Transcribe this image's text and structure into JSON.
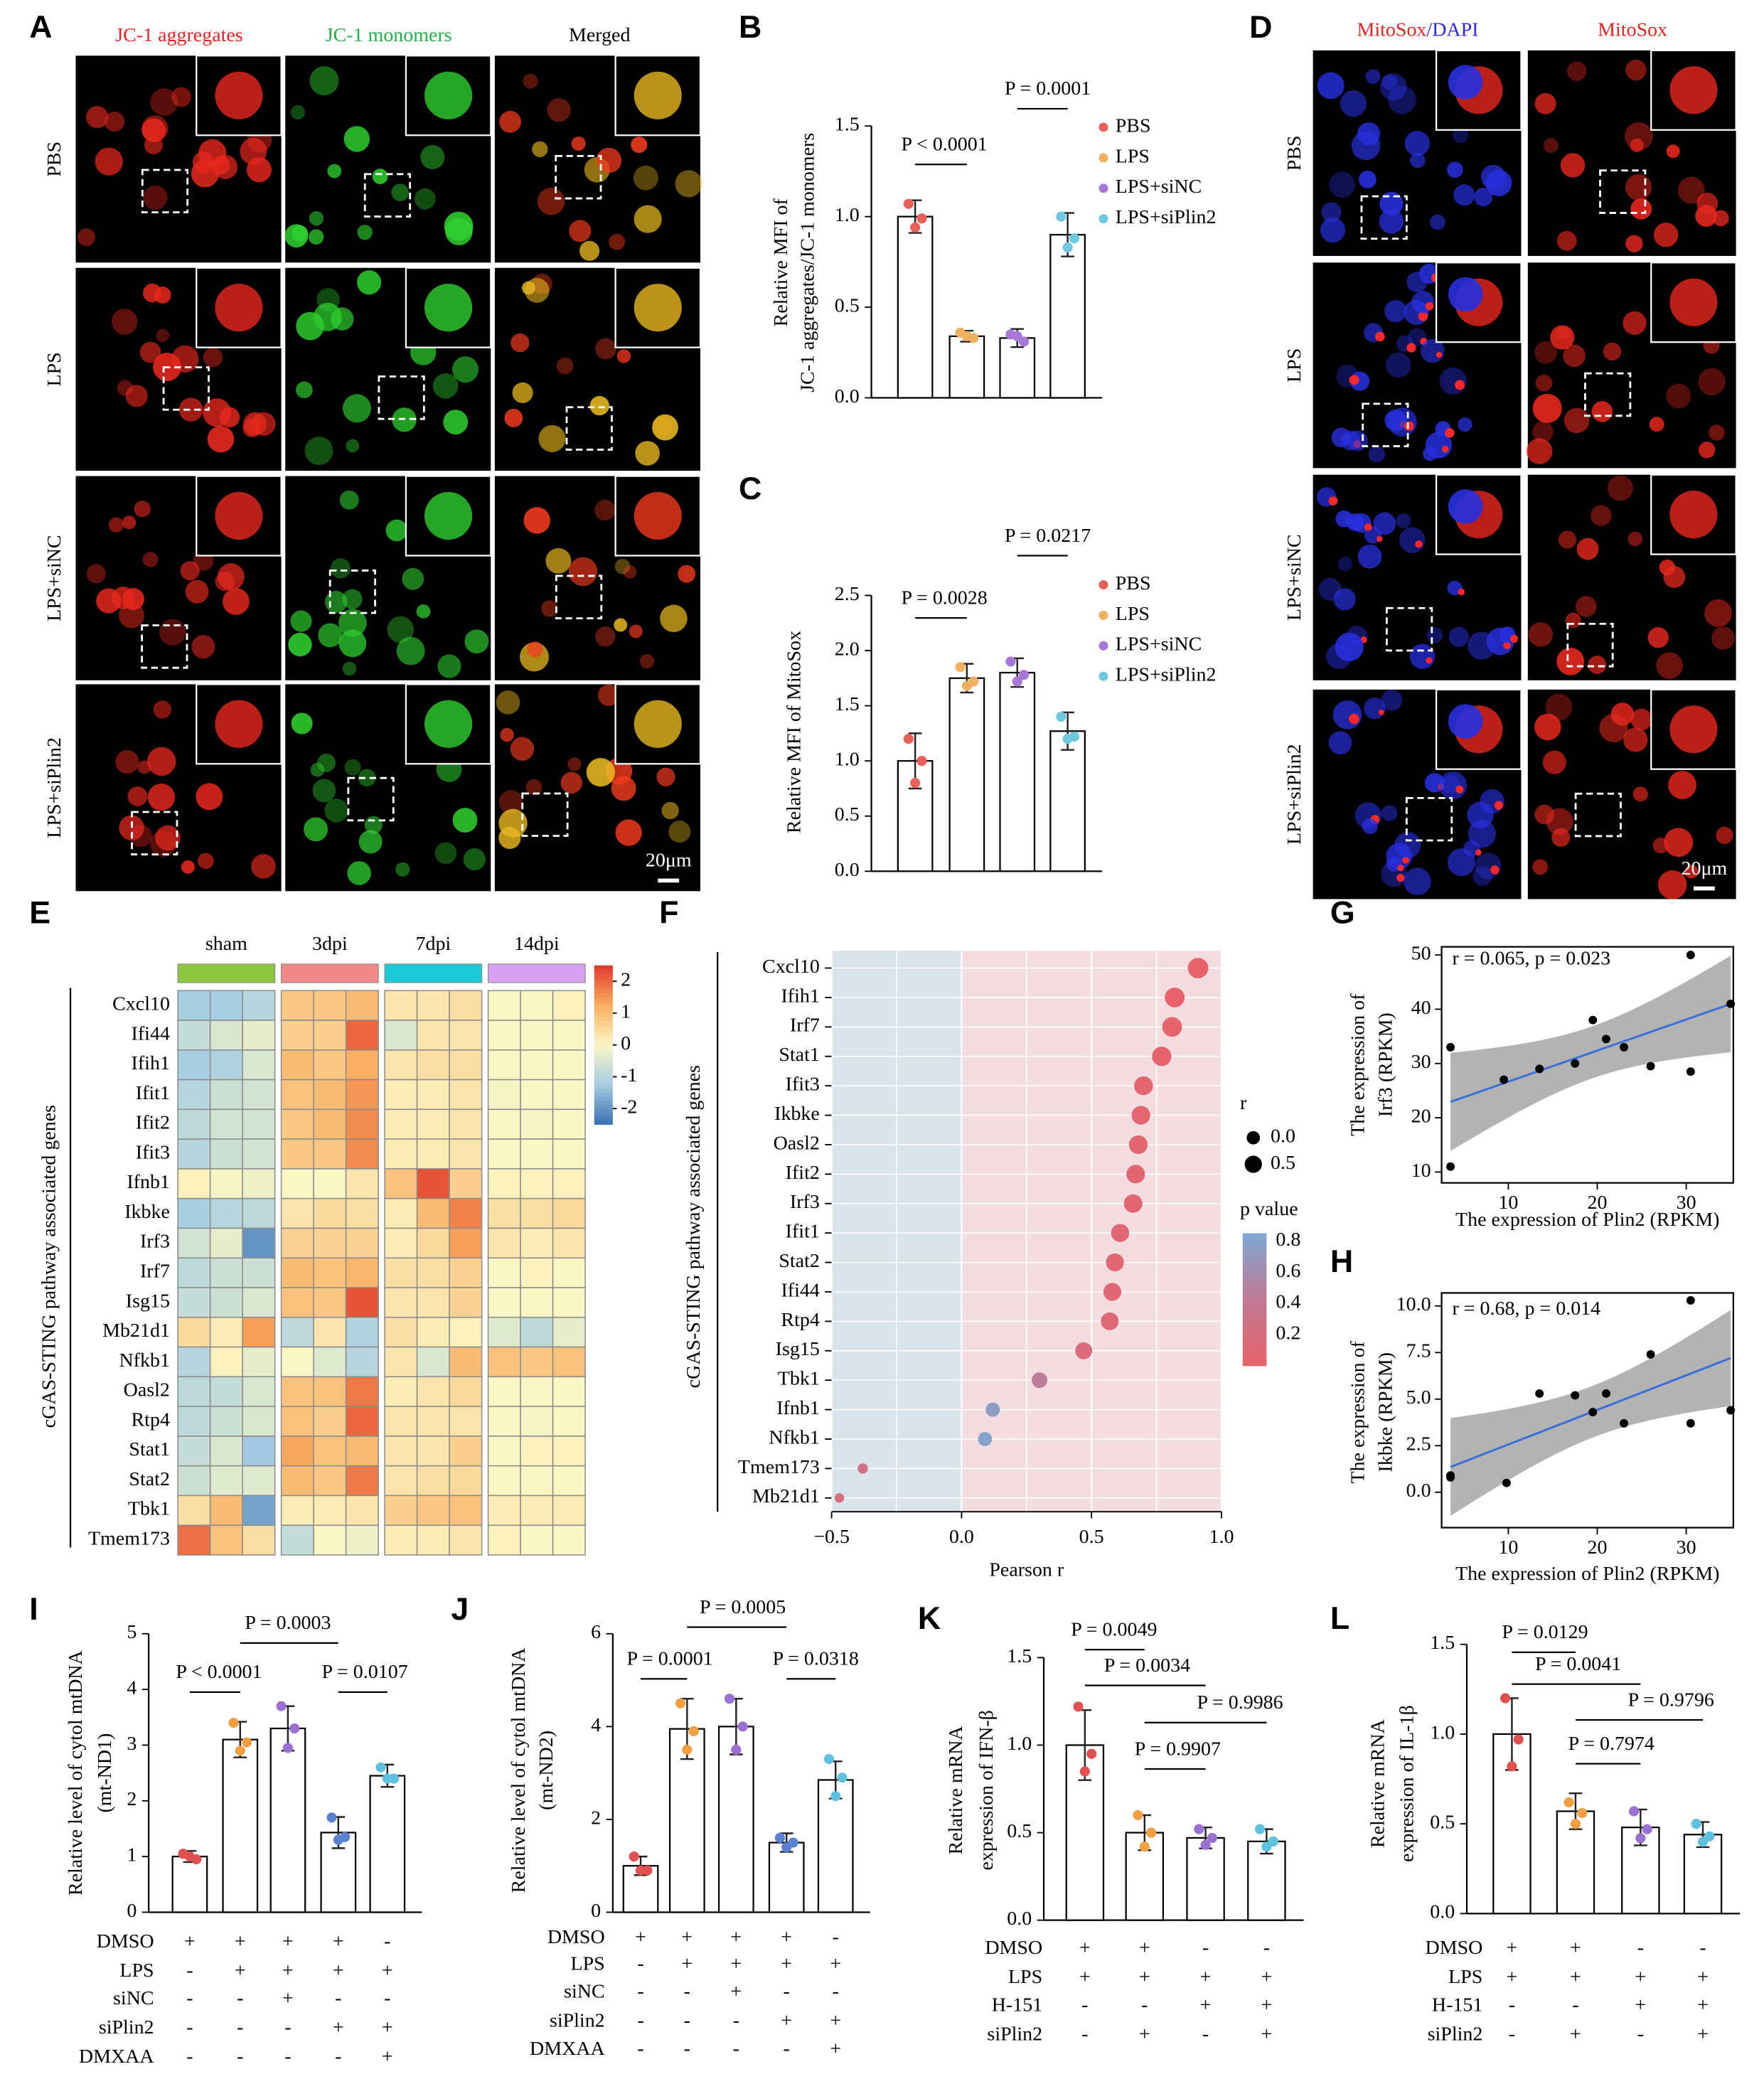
{
  "images": [
    {
      "label": "A",
      "columns": [
        [
          {
            "text": "JC-1 aggregates",
            "color": "#e62222"
          }
        ],
        [
          {
            "text": "JC-1 monomers",
            "color": "#22b04a"
          }
        ],
        [
          {
            "text": "Merged",
            "color": "#000000"
          }
        ]
      ],
      "rows": [
        "PBS",
        "LPS",
        "LPS+siNC",
        "LPS+siPlin2"
      ],
      "scale_bar": "20μm"
    },
    {
      "label": "D",
      "columns": [
        [
          {
            "text": "MitoSox",
            "color": "#e62222"
          },
          {
            "text": "/DAPI",
            "color": "#2a2ae6"
          }
        ],
        [
          {
            "text": "MitoSox",
            "color": "#e62222"
          }
        ]
      ],
      "rows": [
        "PBS",
        "LPS",
        "LPS+siNC",
        "LPS+siPlin2"
      ],
      "scale_bar": "20μm"
    }
  ],
  "chart_data": [
    {
      "type": "bar",
      "label": "B",
      "ylabel": [
        "Relative MFI of",
        "JC-1 aggregates/JC-1 monomers"
      ],
      "categories": [
        "PBS",
        "LPS",
        "LPS+siNC",
        "LPS+siPlin2"
      ],
      "colors": [
        "#e8605a",
        "#f0b060",
        "#a878d8",
        "#70c8e0"
      ],
      "values": [
        1.0,
        0.34,
        0.33,
        0.9
      ],
      "errors": [
        0.09,
        0.03,
        0.05,
        0.12
      ],
      "points": [
        [
          1.07,
          0.99,
          0.94
        ],
        [
          0.36,
          0.33,
          0.34
        ],
        [
          0.35,
          0.31,
          0.34
        ],
        [
          1.0,
          0.88,
          0.83
        ]
      ],
      "ylim": [
        0,
        1.5
      ],
      "yticks": [
        {
          "value": 0,
          "label": "0.0"
        },
        0.5,
        {
          "value": 1,
          "label": "1.0"
        },
        1.5
      ],
      "annotations": [
        "P < 0.0001",
        "P = 0.0001"
      ]
    },
    {
      "type": "bar",
      "label": "C",
      "ylabel": [
        "Relative MFI of MitoSox"
      ],
      "categories": [
        "PBS",
        "LPS",
        "LPS+siNC",
        "LPS+siPlin2"
      ],
      "colors": [
        "#e8605a",
        "#f0b060",
        "#a878d8",
        "#70c8e0"
      ],
      "values": [
        1.0,
        1.75,
        1.8,
        1.27
      ],
      "errors": [
        0.25,
        0.13,
        0.13,
        0.17
      ],
      "points": [
        [
          1.2,
          1.0,
          0.8
        ],
        [
          1.85,
          1.72,
          1.68
        ],
        [
          1.9,
          1.78,
          1.72
        ],
        [
          1.4,
          1.22,
          1.2
        ]
      ],
      "ylim": [
        0,
        2.5
      ],
      "yticks": [
        {
          "value": 0,
          "label": "0.0"
        },
        0.5,
        {
          "value": 1,
          "label": "1.0"
        },
        1.5,
        {
          "value": 2,
          "label": "2.0"
        },
        2.5
      ],
      "annotations": [
        "P = 0.0028",
        "P = 0.0217"
      ]
    },
    {
      "type": "heatmap",
      "label": "E",
      "ylabel": "cGAS-STING pathway associated genes",
      "groups": [
        {
          "name": "sham",
          "color": "#8cc63e"
        },
        {
          "name": "3dpi",
          "color": "#f08a8a"
        },
        {
          "name": "7dpi",
          "color": "#1ccad6"
        },
        {
          "name": "14dpi",
          "color": "#d8a0f0"
        }
      ],
      "rows": [
        "Cxcl10",
        "Ifi44",
        "Ifih1",
        "Ifit1",
        "Ifit2",
        "Ifit3",
        "Ifnb1",
        "Ikbke",
        "Irf3",
        "Irf7",
        "Isg15",
        "Mb21d1",
        "Nfkb1",
        "Oasl2",
        "Rtp4",
        "Stat1",
        "Stat2",
        "Tbk1",
        "Tmem173"
      ],
      "values": [
        [
          -1.2,
          -1.2,
          -1.0,
          0.8,
          0.8,
          1.0,
          0.3,
          0.3,
          0.4,
          0,
          0,
          0.1
        ],
        [
          -0.8,
          -0.5,
          -0.3,
          0.7,
          0.7,
          2.0,
          -0.5,
          0.3,
          0.3,
          0,
          0,
          0
        ],
        [
          -1.2,
          -1.1,
          -0.5,
          1.0,
          0.8,
          1.2,
          0.3,
          0.4,
          0.4,
          0,
          0,
          0
        ],
        [
          -1.0,
          -0.7,
          -0.6,
          0.9,
          1.0,
          1.5,
          0.2,
          0.2,
          0.3,
          -0.1,
          0,
          0
        ],
        [
          -0.9,
          -0.6,
          -0.6,
          0.8,
          1.0,
          1.6,
          0.2,
          0.2,
          0.3,
          0,
          -0.1,
          0
        ],
        [
          -1.0,
          -0.7,
          -0.6,
          0.8,
          0.8,
          1.6,
          0.2,
          0.2,
          0.3,
          0,
          0,
          0
        ],
        [
          0.1,
          -0.1,
          -0.2,
          0,
          0,
          0.3,
          0.9,
          2.2,
          0.7,
          0.1,
          0.1,
          0.1
        ],
        [
          -1.2,
          -1.0,
          -0.9,
          0.3,
          0.5,
          0.4,
          0.2,
          1.0,
          1.7,
          0.4,
          0.4,
          0.5
        ],
        [
          -0.6,
          -0.3,
          -2.0,
          0.6,
          0.6,
          0.6,
          0.2,
          0.5,
          1.4,
          0.3,
          0.2,
          0.3
        ],
        [
          -0.9,
          -0.7,
          -0.7,
          1.0,
          0.9,
          1.1,
          0.4,
          0.4,
          0.6,
          0,
          0.1,
          0
        ],
        [
          -0.8,
          -0.7,
          -0.5,
          0.9,
          0.8,
          2.2,
          0.3,
          0.3,
          0.6,
          0,
          0,
          0
        ],
        [
          0.5,
          0.2,
          1.4,
          -0.9,
          0.3,
          -1.1,
          0.4,
          0.2,
          0.1,
          -0.4,
          -0.9,
          -0.3
        ],
        [
          -1.0,
          0.1,
          -0.3,
          0,
          -0.4,
          -1.0,
          0.3,
          -0.5,
          1.0,
          0.9,
          0.8,
          0.9
        ],
        [
          -0.9,
          -0.8,
          -0.5,
          0.9,
          0.9,
          1.8,
          0.2,
          0.3,
          0.5,
          0,
          0,
          0
        ],
        [
          -0.9,
          -0.7,
          -0.5,
          0.9,
          0.7,
          2.0,
          0.3,
          0.3,
          0.3,
          0,
          -0.1,
          0
        ],
        [
          -0.8,
          -0.5,
          -1.3,
          1.3,
          0.9,
          1.0,
          0.3,
          0.3,
          0.7,
          0,
          0.1,
          0.1
        ],
        [
          -0.7,
          -0.4,
          -0.4,
          1.0,
          0.8,
          1.8,
          0.3,
          0.4,
          0.5,
          0,
          0,
          0
        ],
        [
          0.4,
          1.0,
          -1.8,
          0.2,
          0.2,
          0.3,
          0.7,
          0.8,
          0.9,
          0.2,
          0.2,
          0.2
        ],
        [
          1.9,
          0.9,
          0.4,
          -0.8,
          0,
          -0.2,
          0.2,
          0.2,
          0.3,
          0.1,
          0,
          0
        ]
      ],
      "zlim": [
        -2.5,
        2.5
      ],
      "zticks": [
        2,
        1,
        0,
        -1,
        -2
      ]
    },
    {
      "type": "dot",
      "label": "F",
      "ylabel": "cGAS-STING pathway associated genes",
      "xlabel": "Pearson r",
      "categories": [
        "Cxcl10",
        "Ifih1",
        "Irf7",
        "Stat1",
        "Ifit3",
        "Ikbke",
        "Oasl2",
        "Ifit2",
        "Irf3",
        "Ifit1",
        "Stat2",
        "Ifi44",
        "Rtp4",
        "Isg15",
        "Tbk1",
        "Ifnb1",
        "Nfkb1",
        "Tmem173",
        "Mb21d1"
      ],
      "values": [
        0.91,
        0.82,
        0.81,
        0.77,
        0.7,
        0.69,
        0.68,
        0.67,
        0.66,
        0.61,
        0.59,
        0.58,
        0.57,
        0.47,
        0.3,
        0.12,
        0.09,
        -0.38,
        -0.47
      ],
      "p_values": [
        0.001,
        0.01,
        0.01,
        0.02,
        0.05,
        0.05,
        0.05,
        0.06,
        0.06,
        0.08,
        0.09,
        0.09,
        0.1,
        0.15,
        0.45,
        0.75,
        0.8,
        0.25,
        0.18
      ],
      "xlim": [
        -0.5,
        1.0
      ],
      "xticks": [
        {
          "value": -0.5,
          "label": "−0.5"
        },
        {
          "value": 0,
          "label": "0.0"
        },
        0.5,
        {
          "value": 1,
          "label": "1.0"
        }
      ],
      "size_title": "r",
      "size_legend": [
        {
          "value": 0,
          "label": "0.0"
        },
        0.5
      ],
      "color_title": "p value",
      "plim": [
        0,
        0.85
      ],
      "pticks": [
        0.8,
        0.6,
        0.4,
        0.2
      ]
    },
    {
      "type": "scatter",
      "label": "G",
      "annotation": "r = 0.065, p = 0.023",
      "xlabel": "The expression of Plin2 (RPKM)",
      "ylabel": [
        "The expression of",
        "Irf3 (RPKM)"
      ],
      "x": [
        3.5,
        3.5,
        9.5,
        13.5,
        17.5,
        19.5,
        21,
        23,
        26,
        30.5,
        30.5,
        35
      ],
      "y": [
        33,
        11,
        27,
        29,
        30,
        38,
        34.5,
        33,
        29.5,
        50,
        28.5,
        41
      ],
      "xlim": [
        2.5,
        35.3
      ],
      "xticks": [
        10,
        20,
        30
      ],
      "ylim": [
        8,
        51.5
      ],
      "yticks": [
        10,
        20,
        30,
        40,
        50
      ]
    },
    {
      "type": "scatter",
      "label": "H",
      "annotation": "r = 0.68, p = 0.014",
      "xlabel": "The expression of Plin2 (RPKM)",
      "ylabel": [
        "The expression of",
        "Ikbke (RPKM)"
      ],
      "x": [
        3.5,
        3.5,
        9.8,
        13.5,
        17.5,
        19.5,
        21,
        23,
        26,
        30.5,
        30.5,
        35
      ],
      "y": [
        0.9,
        0.8,
        0.5,
        5.3,
        5.2,
        4.3,
        5.3,
        3.7,
        7.4,
        10.3,
        3.7,
        4.4
      ],
      "xlim": [
        2.5,
        35.3
      ],
      "xticks": [
        10,
        20,
        30
      ],
      "ylim": [
        -1.9,
        10.7
      ],
      "yticks": [
        {
          "value": 0,
          "label": "0.0"
        },
        2.5,
        {
          "value": 5,
          "label": "5.0"
        },
        7.5,
        {
          "value": 10,
          "label": "10.0"
        }
      ]
    },
    {
      "type": "bar",
      "label": "I",
      "ylabel": [
        "Relative level of cytol mtDNA",
        "(mt-ND1)"
      ],
      "colors": [
        "#e05050",
        "#f0a040",
        "#9a70d0",
        "#5a80d0",
        "#60c0e0"
      ],
      "values": [
        1.0,
        3.1,
        3.3,
        1.43,
        2.45
      ],
      "errors": [
        0.1,
        0.32,
        0.4,
        0.28,
        0.2
      ],
      "points": [
        [
          1.05,
          0.95,
          1.0
        ],
        [
          3.4,
          3.05,
          2.9
        ],
        [
          3.7,
          3.3,
          2.95
        ],
        [
          1.7,
          1.35,
          1.3
        ],
        [
          2.6,
          2.4,
          2.4
        ]
      ],
      "ylim": [
        0,
        5
      ],
      "yticks": [
        0,
        1,
        2,
        3,
        4,
        5
      ],
      "annotations": [
        "P < 0.0001",
        "P = 0.0003",
        "P = 0.0107"
      ],
      "conditions": {
        "rows": [
          "DMSO",
          "LPS",
          "siNC",
          "siPlin2",
          "DMXAA"
        ],
        "cells": [
          [
            "+",
            "+",
            "+",
            "+",
            "-"
          ],
          [
            "-",
            "+",
            "+",
            "+",
            "+"
          ],
          [
            "-",
            "-",
            "+",
            "-",
            "-"
          ],
          [
            "-",
            "-",
            "-",
            "+",
            "+"
          ],
          [
            "-",
            "-",
            "-",
            "-",
            "+"
          ]
        ]
      }
    },
    {
      "type": "bar",
      "label": "J",
      "ylabel": [
        "Relative level of cytol mtDNA",
        "(mt-ND2)"
      ],
      "colors": [
        "#e05050",
        "#f0a040",
        "#9a70d0",
        "#5a80d0",
        "#60c0e0"
      ],
      "values": [
        1.0,
        3.95,
        4.0,
        1.5,
        2.85
      ],
      "errors": [
        0.2,
        0.65,
        0.6,
        0.2,
        0.4
      ],
      "points": [
        [
          1.2,
          0.9,
          0.9
        ],
        [
          4.5,
          3.9,
          3.5
        ],
        [
          4.6,
          4.0,
          3.5
        ],
        [
          1.6,
          1.5,
          1.4
        ],
        [
          3.3,
          2.9,
          2.5
        ]
      ],
      "ylim": [
        0,
        6
      ],
      "yticks": [
        0,
        2,
        4,
        6
      ],
      "annotations": [
        "P = 0.0001",
        "P = 0.0005",
        "P = 0.0318"
      ],
      "conditions": {
        "rows": [
          "DMSO",
          "LPS",
          "siNC",
          "siPlin2",
          "DMXAA"
        ],
        "cells": [
          [
            "+",
            "+",
            "+",
            "+",
            "-"
          ],
          [
            "-",
            "+",
            "+",
            "+",
            "+"
          ],
          [
            "-",
            "-",
            "+",
            "-",
            "-"
          ],
          [
            "-",
            "-",
            "-",
            "+",
            "+"
          ],
          [
            "-",
            "-",
            "-",
            "-",
            "+"
          ]
        ]
      }
    },
    {
      "type": "bar",
      "label": "K",
      "ylabel": [
        "Relative mRNA",
        "expression of IFN-β"
      ],
      "colors": [
        "#e05050",
        "#f0a040",
        "#9a70d0",
        "#60c0e0"
      ],
      "values": [
        1.0,
        0.5,
        0.47,
        0.45
      ],
      "errors": [
        0.2,
        0.1,
        0.06,
        0.07
      ],
      "points": [
        [
          1.22,
          0.95,
          0.85
        ],
        [
          0.6,
          0.5,
          0.42
        ],
        [
          0.52,
          0.47,
          0.43
        ],
        [
          0.52,
          0.45,
          0.42
        ]
      ],
      "ylim": [
        0,
        1.5
      ],
      "yticks": [
        {
          "value": 0,
          "label": "0.0"
        },
        0.5,
        {
          "value": 1,
          "label": "1.0"
        },
        1.5
      ],
      "annotations": [
        "P = 0.0049",
        "P = 0.0034",
        "P = 0.9986",
        "P = 0.9907"
      ],
      "conditions": {
        "rows": [
          "DMSO",
          "LPS",
          "H-151",
          "siPlin2"
        ],
        "cells": [
          [
            "+",
            "+",
            "-",
            "-"
          ],
          [
            "+",
            "+",
            "+",
            "+"
          ],
          [
            "-",
            "-",
            "+",
            "+"
          ],
          [
            "-",
            "+",
            "-",
            "+"
          ]
        ]
      }
    },
    {
      "type": "bar",
      "label": "L",
      "ylabel": [
        "Relative mRNA",
        "expression of IL-1β"
      ],
      "colors": [
        "#e05050",
        "#f0a040",
        "#9a70d0",
        "#60c0e0"
      ],
      "values": [
        1.0,
        0.57,
        0.48,
        0.44
      ],
      "errors": [
        0.2,
        0.1,
        0.1,
        0.07
      ],
      "points": [
        [
          1.2,
          0.97,
          0.82
        ],
        [
          0.62,
          0.56,
          0.5
        ],
        [
          0.57,
          0.47,
          0.42
        ],
        [
          0.5,
          0.43,
          0.4
        ]
      ],
      "ylim": [
        0,
        1.5
      ],
      "yticks": [
        {
          "value": 0,
          "label": "0.0"
        },
        0.5,
        {
          "value": 1,
          "label": "1.0"
        },
        1.5
      ],
      "annotations": [
        "P = 0.0129",
        "P = 0.0041",
        "P = 0.9796",
        "P = 0.7974"
      ],
      "conditions": {
        "rows": [
          "DMSO",
          "LPS",
          "H-151",
          "siPlin2"
        ],
        "cells": [
          [
            "+",
            "+",
            "-",
            "-"
          ],
          [
            "+",
            "+",
            "+",
            "+"
          ],
          [
            "-",
            "-",
            "+",
            "+"
          ],
          [
            "-",
            "+",
            "-",
            "+"
          ]
        ]
      }
    }
  ]
}
